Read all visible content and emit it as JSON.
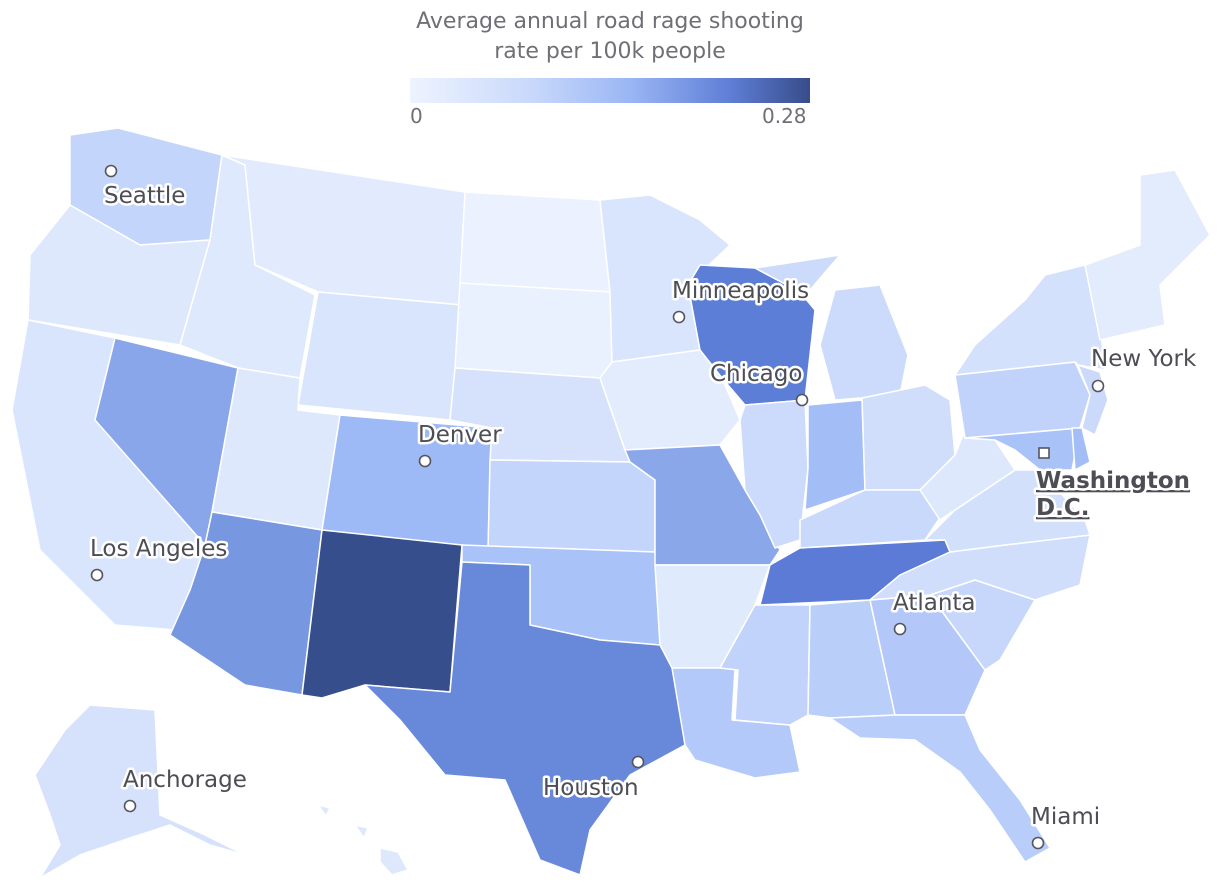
{
  "legend": {
    "title_line1": "Average annual road rage shooting",
    "title_line2": "rate per 100k people",
    "min_label": "0",
    "max_label": "0.28",
    "color_low": "#eef3fe",
    "color_high": "#374c8a"
  },
  "cities": {
    "seattle": "Seattle",
    "minneapolis": "Minneapolis",
    "new_york": "New York",
    "chicago": "Chicago",
    "denver": "Denver",
    "washington_line1": "Washington",
    "washington_line2": "D.C.",
    "los_angeles": "Los Angeles",
    "atlanta": "Atlanta",
    "houston": "Houston",
    "anchorage": "Anchorage",
    "miami": "Miami"
  },
  "states": {
    "new_mexico": "#374e8c",
    "wisconsin": "#5d7ed6",
    "tennessee": "#5b7bd6",
    "texas": "#6888da",
    "arizona": "#7797e0",
    "nevada": "#89a6ea",
    "missouri": "#8aa7ea",
    "colorado": "#9db9f6",
    "indiana": "#a3bef6",
    "oklahoma": "#a9c2f8",
    "washington": "#c4d5fb",
    "kansas": "#c4d5fb",
    "pennsylvania": "#c1d3fb",
    "alabama": "#bacefa",
    "georgia": "#b3c8f9",
    "florida": "#b9cdfa",
    "louisiana": "#b3c9f9",
    "mississippi": "#c1d3fb",
    "south_carolina": "#c6d7fb",
    "north_carolina": "#d0defb",
    "kentucky": "#c9d9fb",
    "virginia": "#d2e0fc",
    "michigan": "#ccdbfb",
    "illinois": "#ccdbfb",
    "ohio": "#d0defc",
    "maryland": "#a9c2f8",
    "delaware": "#a3bef6",
    "new_jersey": "#cbdafb",
    "new_york": "#d4e1fc",
    "california": "#d9e5fc",
    "oregon": "#dde8fd",
    "idaho": "#dfe9fd",
    "montana": "#e2ebfd",
    "wyoming": "#d9e5fc",
    "utah": "#dde8fd",
    "nebraska": "#d6e2fc",
    "minnesota": "#d9e5fc",
    "iowa": "#e3ecfd",
    "arkansas": "#e0eafd",
    "north_dakota": "#ebf1fe",
    "south_dakota": "#e9f0fe",
    "west_virginia": "#dde8fd",
    "new_england": "#e3ecfd",
    "alaska": "#d6e2fc",
    "hawaii": "#dde8fd"
  }
}
